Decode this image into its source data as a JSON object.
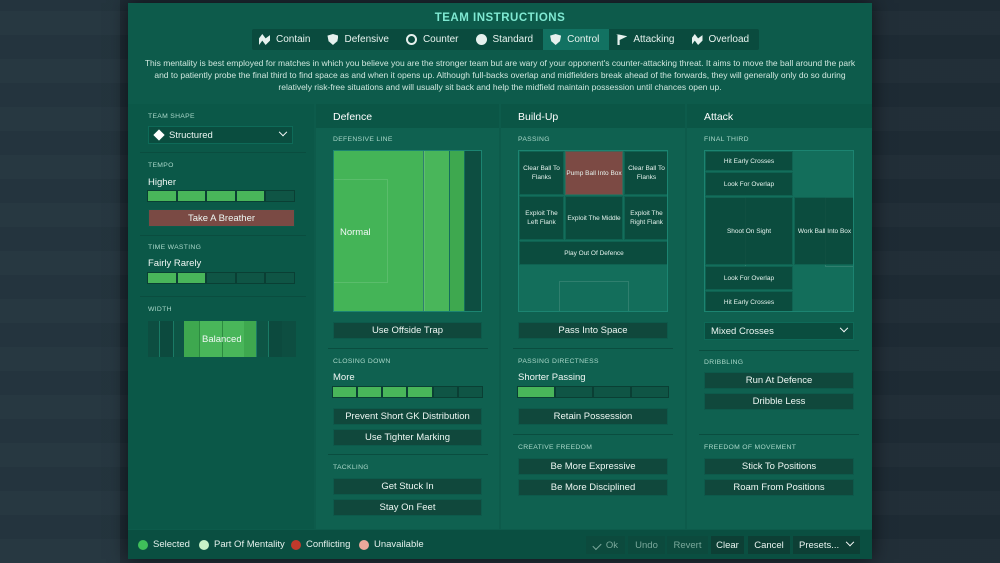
{
  "title": "TEAM INSTRUCTIONS",
  "mentalities": [
    {
      "label": "Contain",
      "icon": "handshake-icon"
    },
    {
      "label": "Defensive",
      "icon": "shield-icon"
    },
    {
      "label": "Counter",
      "icon": "counter-icon"
    },
    {
      "label": "Standard",
      "icon": "ball-icon"
    },
    {
      "label": "Control",
      "icon": "control-shield-icon"
    },
    {
      "label": "Attacking",
      "icon": "flag-icon"
    },
    {
      "label": "Overload",
      "icon": "overload-icon"
    }
  ],
  "active_mentality": "Control",
  "description": "This mentality is best employed for matches in which you believe you are the stronger team but are wary of your opponent's counter-attacking threat. It aims to move the ball around the park and to patiently probe the final third to find space as and when it opens up. Although full-backs overlap and midfielders break ahead of the forwards, they will generally only do so during relatively risk-free situations and will usually sit back and help the midfield maintain possession until chances open up.",
  "left": {
    "team_shape_label": "TEAM SHAPE",
    "team_shape_value": "Structured",
    "tempo_label": "TEMPO",
    "tempo_value": "Higher",
    "tempo_level": 0.8,
    "take_a_breather": "Take A Breather",
    "time_wasting_label": "TIME WASTING",
    "time_wasting_value": "Fairly Rarely",
    "time_wasting_level": 0.4,
    "width_label": "WIDTH",
    "width_value": "Balanced"
  },
  "defence": {
    "header": "Defence",
    "defensive_line_label": "DEFENSIVE LINE",
    "defensive_line_value": "Normal",
    "offside_trap": "Use Offside Trap",
    "closing_down_label": "CLOSING DOWN",
    "closing_down_value": "More",
    "closing_down_level": 0.7,
    "short_gk": "Prevent Short GK Distribution",
    "tighter_marking": "Use Tighter Marking",
    "tackling_label": "TACKLING",
    "stuck_in": "Get Stuck In",
    "stay_on_feet": "Stay On Feet"
  },
  "buildup": {
    "header": "Build-Up",
    "passing_label": "PASSING",
    "cells": {
      "clear_left": "Clear Ball To Flanks",
      "pump": "Pump Ball Into Box",
      "clear_right": "Clear Ball To Flanks",
      "exploit_left": "Exploit The Left Flank",
      "exploit_middle": "Exploit The Middle",
      "exploit_right": "Exploit The Right Flank",
      "play_out": "Play Out Of Defence"
    },
    "pass_into_space": "Pass Into Space",
    "directness_label": "PASSING DIRECTNESS",
    "directness_value": "Shorter Passing",
    "directness_level": 0.25,
    "retain_possession": "Retain Possession",
    "creative_label": "CREATIVE FREEDOM",
    "more_expressive": "Be More Expressive",
    "more_disciplined": "Be More Disciplined"
  },
  "attack": {
    "header": "Attack",
    "final_third_label": "FINAL THIRD",
    "cells": {
      "hit_early_top": "Hit Early Crosses",
      "overlap_top": "Look For Overlap",
      "shoot": "Shoot On Sight",
      "work_into_box": "Work Ball Into Box",
      "overlap_bottom": "Look For Overlap",
      "hit_early_bottom": "Hit Early Crosses"
    },
    "crosses_value": "Mixed Crosses",
    "dribbling_label": "DRIBBLING",
    "run_at_defence": "Run At Defence",
    "dribble_less": "Dribble Less",
    "freedom_label": "FREEDOM OF MOVEMENT",
    "stick_to_positions": "Stick To Positions",
    "roam": "Roam From Positions"
  },
  "legend": [
    {
      "label": "Selected",
      "color": "#3fbf5a"
    },
    {
      "label": "Part Of Mentality",
      "color": "#c8f3c8"
    },
    {
      "label": "Conflicting",
      "color": "#c0392b"
    },
    {
      "label": "Unavailable",
      "color": "#e9a89b"
    }
  ],
  "footer": {
    "ok": "Ok",
    "undo": "Undo",
    "revert": "Revert",
    "clear": "Clear",
    "cancel": "Cancel",
    "presets": "Presets..."
  },
  "colors": {
    "accent": "#7fe9d2",
    "selected_green": "#49b65a",
    "conflict_red": "#7a4a44"
  }
}
